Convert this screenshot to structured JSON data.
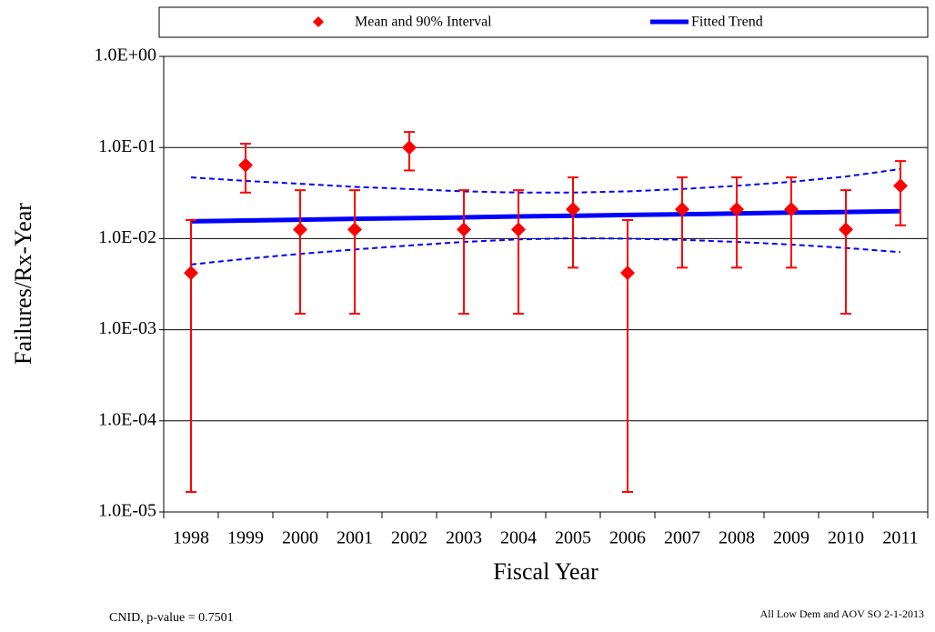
{
  "chart_data": {
    "type": "errorbar",
    "x_label": "Fiscal Year",
    "y_label": "Failures/Rx-Year",
    "categories": [
      "1998",
      "1999",
      "2000",
      "2001",
      "2002",
      "2003",
      "2004",
      "2005",
      "2006",
      "2007",
      "2008",
      "2009",
      "2010",
      "2011"
    ],
    "log_scale": true,
    "grid": true,
    "ylim": [
      1e-05,
      1
    ],
    "yticks": [
      {
        "value": 1,
        "label": "1.0E+00"
      },
      {
        "value": 0.1,
        "label": "1.0E-01"
      },
      {
        "value": 0.01,
        "label": "1.0E-02"
      },
      {
        "value": 0.001,
        "label": "1.0E-03"
      },
      {
        "value": 0.0001,
        "label": "1.0E-04"
      },
      {
        "value": 1e-05,
        "label": "1.0E-05"
      }
    ],
    "series": [
      {
        "name": "Mean and 90% Interval",
        "color": "#ff0000",
        "values": [
          0.0042,
          0.064,
          0.0126,
          0.0126,
          0.1,
          0.0126,
          0.0126,
          0.021,
          0.0042,
          0.021,
          0.021,
          0.021,
          0.0126,
          0.038
        ],
        "lower": [
          1.66e-05,
          0.032,
          0.0015,
          0.0015,
          0.056,
          0.0015,
          0.0015,
          0.0048,
          1.66e-05,
          0.0048,
          0.0048,
          0.0048,
          0.0015,
          0.014
        ],
        "upper": [
          0.016,
          0.11,
          0.034,
          0.034,
          0.148,
          0.034,
          0.034,
          0.047,
          0.016,
          0.047,
          0.047,
          0.047,
          0.034,
          0.071
        ]
      },
      {
        "name": "Fitted Trend",
        "color": "#0000ff",
        "values": [
          0.0155,
          0.0158,
          0.0161,
          0.0165,
          0.0168,
          0.0171,
          0.0175,
          0.0178,
          0.0182,
          0.0185,
          0.0189,
          0.0193,
          0.0196,
          0.02
        ]
      }
    ],
    "bounds": {
      "color": "#0000ff",
      "upper": [
        0.047,
        0.043,
        0.04,
        0.037,
        0.035,
        0.033,
        0.032,
        0.032,
        0.033,
        0.035,
        0.038,
        0.042,
        0.048,
        0.058
      ],
      "lower": [
        0.0052,
        0.006,
        0.0068,
        0.0076,
        0.0084,
        0.0092,
        0.0098,
        0.0101,
        0.01,
        0.0097,
        0.0092,
        0.0086,
        0.0079,
        0.0071
      ]
    },
    "footnote_left": "CNID, p-value = 0.7501",
    "footnote_right": "All Low Dem and AOV SO 2-1-2013"
  }
}
